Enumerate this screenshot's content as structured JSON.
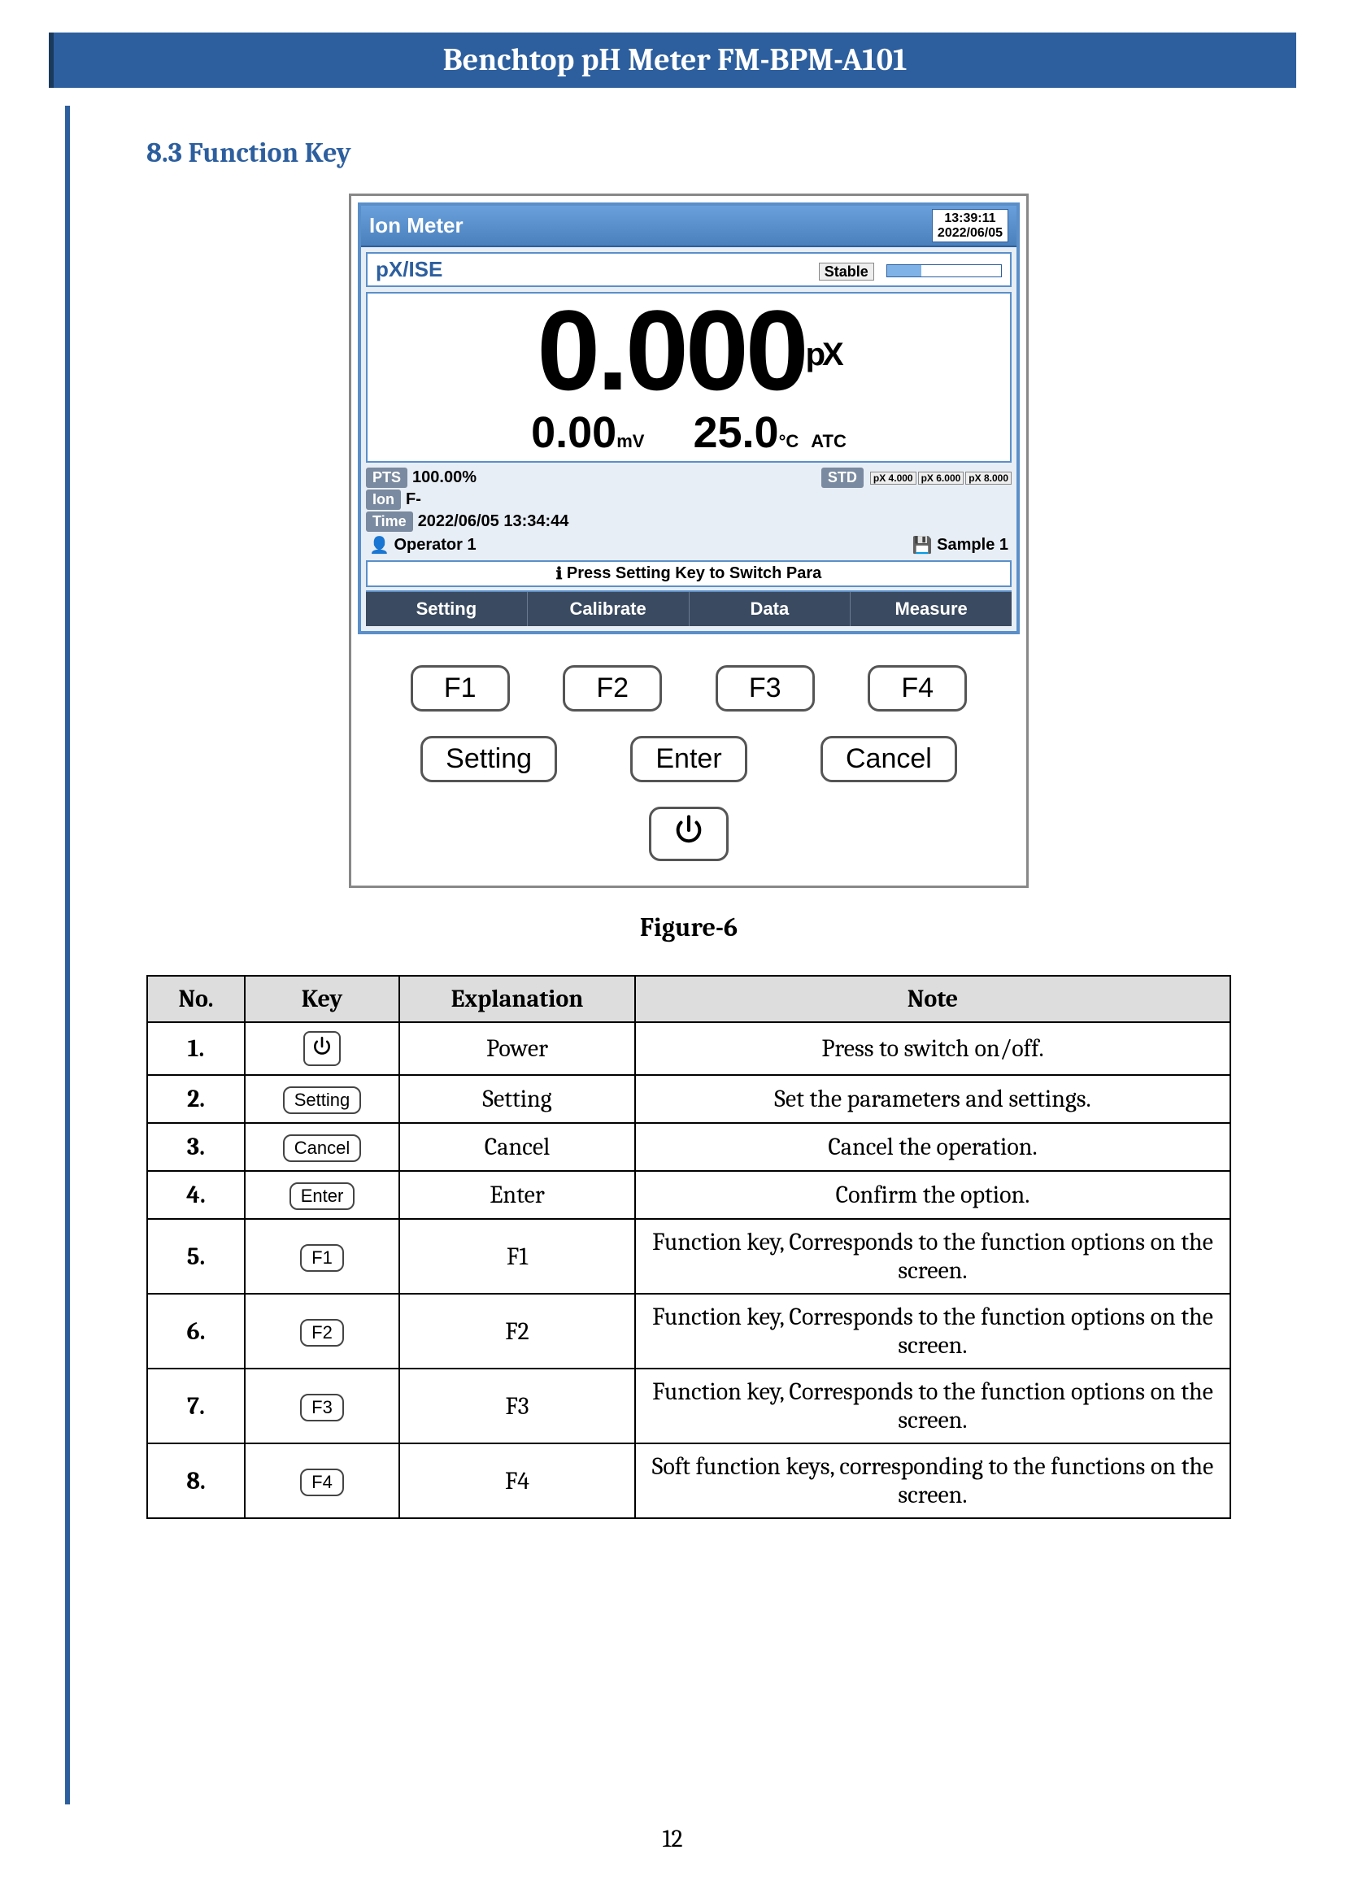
{
  "header": {
    "title": "Benchtop pH Meter FM-BPM-A101"
  },
  "section": {
    "number": "8.3",
    "title": "Function Key"
  },
  "figure_caption": "Figure-6",
  "page_number": "12",
  "device": {
    "lcd": {
      "titlebar": {
        "title": "Ion Meter",
        "time": "13:39:11",
        "date": "2022/06/05"
      },
      "mode": {
        "label": "pX/ISE",
        "status": "Stable"
      },
      "main_reading": {
        "value": "0.000",
        "unit": "pX"
      },
      "mv": {
        "value": "0.00",
        "unit": "mV"
      },
      "temp": {
        "value": "25.0",
        "unit": "°C",
        "suffix": "ATC"
      },
      "pts": {
        "label": "PTS",
        "value": "100.00%"
      },
      "std": {
        "label": "STD",
        "points": [
          "pX 4.000",
          "pX 6.000",
          "pX 8.000"
        ]
      },
      "ion": {
        "label": "Ion",
        "value": "F-"
      },
      "time_row": {
        "label": "Time",
        "value": "2022/06/05 13:34:44"
      },
      "operator": "Operator 1",
      "sample": "Sample 1",
      "hint": "Press Setting Key to Switch Para",
      "softkeys": [
        "Setting",
        "Calibrate",
        "Data",
        "Measure"
      ]
    },
    "hard_keys_row1": [
      "F1",
      "F2",
      "F3",
      "F4"
    ],
    "hard_keys_row2": [
      "Setting",
      "Enter",
      "Cancel"
    ]
  },
  "table": {
    "headers": [
      "No.",
      "Key",
      "Explanation",
      "Note"
    ],
    "rows": [
      {
        "no": "1.",
        "key_type": "power",
        "key_label": "⏻",
        "explanation": "Power",
        "note": "Press to switch on/off."
      },
      {
        "no": "2.",
        "key_type": "text",
        "key_label": "Setting",
        "explanation": "Setting",
        "note": "Set the parameters and settings."
      },
      {
        "no": "3.",
        "key_type": "text",
        "key_label": "Cancel",
        "explanation": "Cancel",
        "note": "Cancel the operation."
      },
      {
        "no": "4.",
        "key_type": "text",
        "key_label": "Enter",
        "explanation": "Enter",
        "note": "Confirm the option."
      },
      {
        "no": "5.",
        "key_type": "text",
        "key_label": "F1",
        "explanation": "F1",
        "note": "Function key, Corresponds to the function options on the screen."
      },
      {
        "no": "6.",
        "key_type": "text",
        "key_label": "F2",
        "explanation": "F2",
        "note": "Function key, Corresponds to the function options on the screen."
      },
      {
        "no": "7.",
        "key_type": "text",
        "key_label": "F3",
        "explanation": "F3",
        "note": "Function key, Corresponds to the function options on the screen."
      },
      {
        "no": "8.",
        "key_type": "text",
        "key_label": "F4",
        "explanation": "F4",
        "note": "Soft function keys, corresponding to the functions on the screen."
      }
    ]
  },
  "colors": {
    "header_bg": "#2d5f9e",
    "header_text": "#ffffff",
    "rule": "#2d5f9e",
    "lcd_border": "#5a8fc9",
    "softkey_bg": "#3a4a60"
  }
}
